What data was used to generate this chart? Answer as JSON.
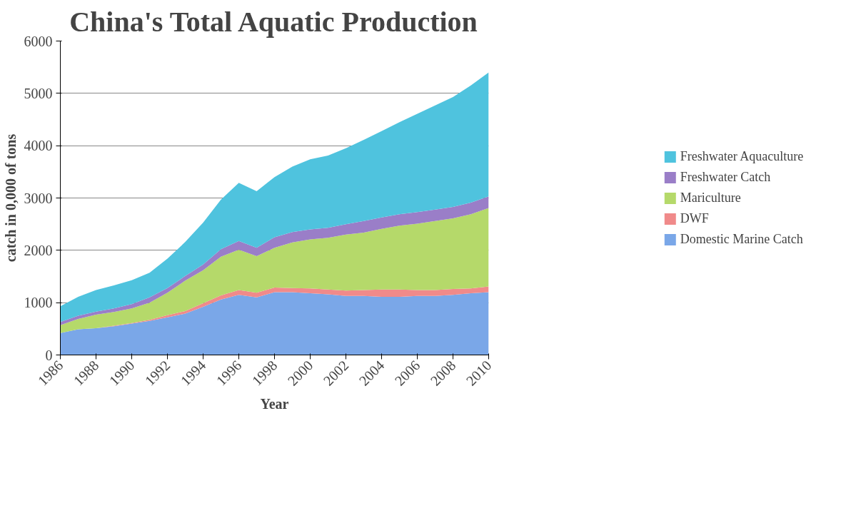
{
  "chart_data": {
    "type": "area",
    "stacked": true,
    "title": "China's Total Aquatic Production",
    "xlabel": "Year",
    "ylabel": "catch in 0,000 of tons",
    "x": [
      1986,
      1987,
      1988,
      1989,
      1990,
      1991,
      1992,
      1993,
      1994,
      1995,
      1996,
      1997,
      1998,
      1999,
      2000,
      2001,
      2002,
      2003,
      2004,
      2005,
      2006,
      2007,
      2008,
      2009,
      2010
    ],
    "series": [
      {
        "name": "Domestic Marine Catch",
        "color": "#7aa7e8",
        "values": [
          420,
          490,
          510,
          550,
          600,
          650,
          720,
          790,
          920,
          1060,
          1150,
          1100,
          1200,
          1200,
          1180,
          1160,
          1130,
          1130,
          1110,
          1110,
          1130,
          1130,
          1150,
          1180,
          1200
        ]
      },
      {
        "name": "DWF",
        "color": "#f08a8a",
        "values": [
          0,
          0,
          0,
          10,
          10,
          20,
          40,
          50,
          70,
          80,
          90,
          90,
          90,
          80,
          90,
          90,
          100,
          110,
          140,
          140,
          110,
          110,
          110,
          90,
          110
        ]
      },
      {
        "name": "Mariculture",
        "color": "#b5d96a",
        "values": [
          150,
          200,
          260,
          260,
          280,
          330,
          430,
          580,
          630,
          740,
          770,
          700,
          760,
          870,
          940,
          990,
          1070,
          1100,
          1160,
          1220,
          1270,
          1320,
          1350,
          1420,
          1500
        ]
      },
      {
        "name": "Freshwater Catch",
        "color": "#9a7ec8",
        "values": [
          60,
          60,
          60,
          70,
          80,
          100,
          90,
          90,
          110,
          140,
          170,
          160,
          200,
          200,
          190,
          190,
          200,
          220,
          220,
          220,
          220,
          220,
          220,
          220,
          220
        ]
      },
      {
        "name": "Freshwater Aquaculture",
        "color": "#4fc3de",
        "values": [
          300,
          360,
          410,
          440,
          460,
          470,
          560,
          650,
          800,
          950,
          1110,
          1080,
          1150,
          1250,
          1340,
          1380,
          1450,
          1550,
          1650,
          1760,
          1880,
          1990,
          2100,
          2240,
          2370
        ]
      }
    ],
    "xlim": [
      1986,
      2010
    ],
    "xticks": [
      1986,
      1988,
      1990,
      1992,
      1994,
      1996,
      1998,
      2000,
      2002,
      2004,
      2006,
      2008,
      2010
    ],
    "ylim": [
      0,
      6000
    ],
    "yticks": [
      0,
      1000,
      2000,
      3000,
      4000,
      5000,
      6000
    ],
    "grid": "y",
    "legend": "right"
  }
}
